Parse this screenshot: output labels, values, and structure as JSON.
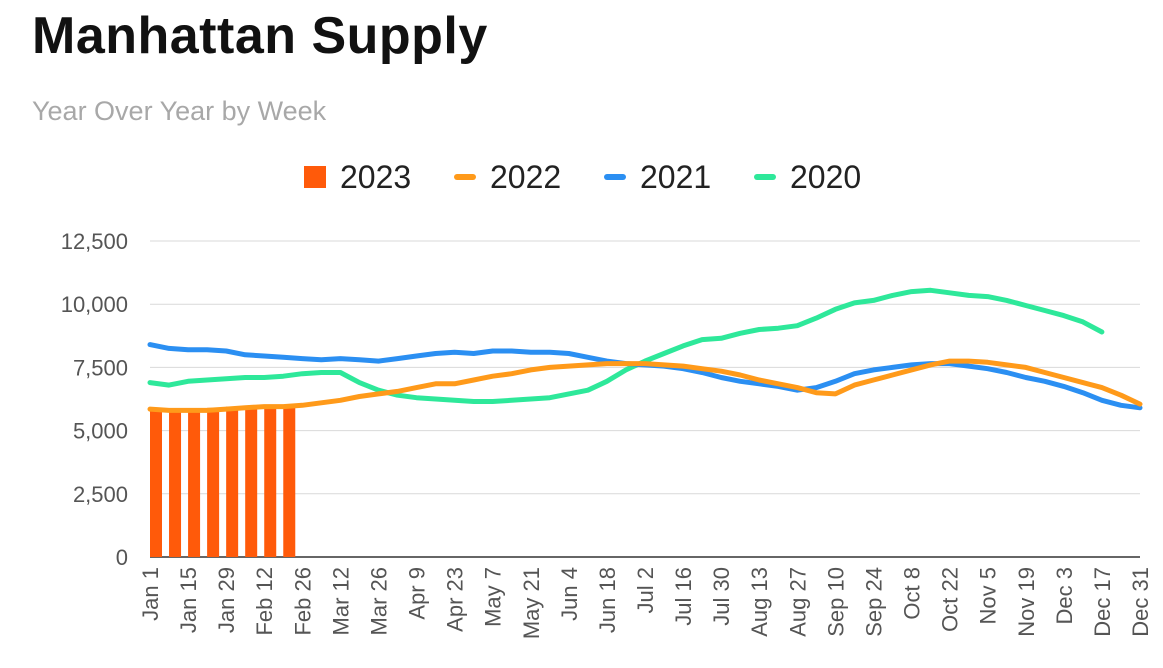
{
  "title": "Manhattan Supply",
  "subtitle": "Year Over Year by Week",
  "legend": [
    {
      "name": "2023",
      "color": "#ff5a0a",
      "kind": "bar"
    },
    {
      "name": "2022",
      "color": "#ff9a1a",
      "kind": "line"
    },
    {
      "name": "2021",
      "color": "#2b8ff2",
      "kind": "line"
    },
    {
      "name": "2020",
      "color": "#2ee89a",
      "kind": "line"
    }
  ],
  "chart_data": {
    "type": "line",
    "title": "Manhattan Supply",
    "subtitle": "Year Over Year by Week",
    "ylim": [
      0,
      12500
    ],
    "yticks": [
      "0",
      "2,500",
      "5,000",
      "7,500",
      "10,000",
      "12,500"
    ],
    "ytick_values": [
      0,
      2500,
      5000,
      7500,
      10000,
      12500
    ],
    "grid": true,
    "legend_position": "top",
    "x_tick_labels": [
      "Jan 1",
      "Jan 15",
      "Jan 29",
      "Feb 12",
      "Feb 26",
      "Mar 12",
      "Mar 26",
      "Apr 9",
      "Apr 23",
      "May 7",
      "May 21",
      "Jun 4",
      "Jun 18",
      "Jul 2",
      "Jul 16",
      "Jul 30",
      "Aug 13",
      "Aug 27",
      "Sep 10",
      "Sep 24",
      "Oct 8",
      "Oct 22",
      "Nov 5",
      "Nov 19",
      "Dec 3",
      "Dec 17",
      "Dec 31"
    ],
    "week_count": 53,
    "series": [
      {
        "name": "2023",
        "type": "bar",
        "color": "#ff5a0a",
        "values": [
          5850,
          5800,
          5850,
          5900,
          5950,
          5950,
          6000,
          6000
        ]
      },
      {
        "name": "2022",
        "type": "line",
        "color": "#ff9a1a",
        "values": [
          5850,
          5800,
          5800,
          5800,
          5850,
          5900,
          5950,
          5950,
          6000,
          6100,
          6200,
          6350,
          6450,
          6550,
          6700,
          6850,
          6850,
          7000,
          7150,
          7250,
          7400,
          7500,
          7550,
          7600,
          7650,
          7650,
          7650,
          7600,
          7550,
          7450,
          7350,
          7200,
          7000,
          6850,
          6700,
          6500,
          6450,
          6800,
          7000,
          7200,
          7400,
          7600,
          7750,
          7750,
          7700,
          7600,
          7500,
          7300,
          7100,
          6900,
          6700,
          6400,
          6050
        ]
      },
      {
        "name": "2021",
        "type": "line",
        "color": "#2b8ff2",
        "values": [
          8400,
          8250,
          8200,
          8200,
          8150,
          8000,
          7950,
          7900,
          7850,
          7800,
          7850,
          7800,
          7750,
          7850,
          7950,
          8050,
          8100,
          8050,
          8150,
          8150,
          8100,
          8100,
          8050,
          7900,
          7750,
          7650,
          7600,
          7550,
          7450,
          7300,
          7100,
          6950,
          6850,
          6750,
          6600,
          6700,
          6950,
          7250,
          7400,
          7500,
          7600,
          7650,
          7650,
          7550,
          7450,
          7300,
          7100,
          6950,
          6750,
          6500,
          6200,
          6000,
          5900
        ]
      },
      {
        "name": "2020",
        "type": "line",
        "color": "#2ee89a",
        "values": [
          6900,
          6800,
          6950,
          7000,
          7050,
          7100,
          7100,
          7150,
          7250,
          7300,
          7300,
          6900,
          6600,
          6400,
          6300,
          6250,
          6200,
          6150,
          6150,
          6200,
          6250,
          6300,
          6450,
          6600,
          6950,
          7400,
          7750,
          8050,
          8350,
          8600,
          8650,
          8850,
          9000,
          9050,
          9150,
          9450,
          9800,
          10050,
          10150,
          10350,
          10500,
          10550,
          10450,
          10350,
          10300,
          10150,
          9950,
          9750,
          9550,
          9300,
          8900
        ]
      }
    ]
  }
}
